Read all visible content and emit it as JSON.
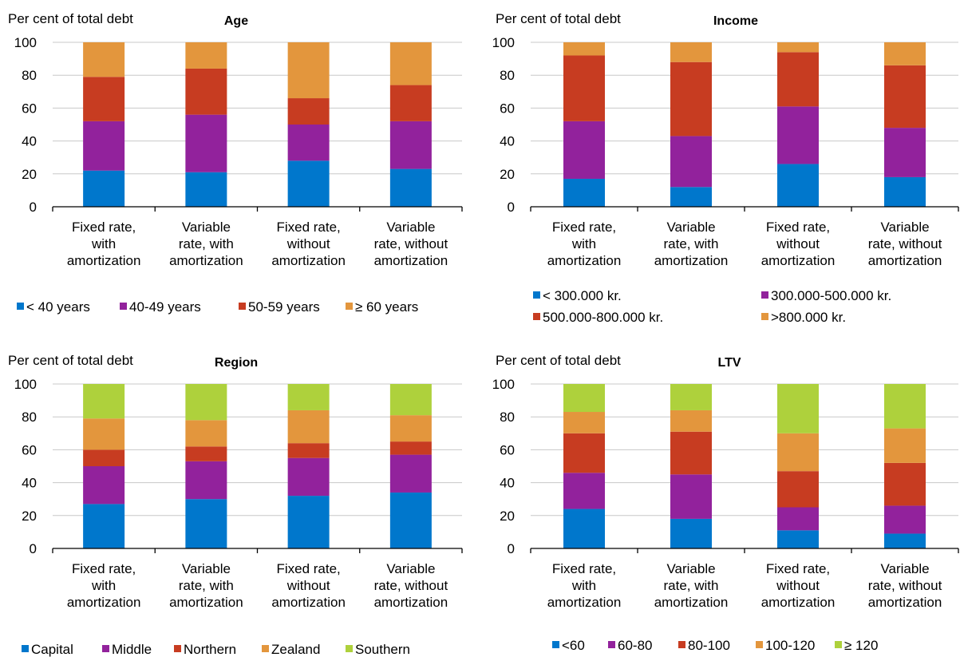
{
  "colors": {
    "blue": "#0077cc",
    "purple": "#92229c",
    "red": "#c73c21",
    "orange": "#e3963d",
    "green": "#aed13c",
    "grid": "#c8c8c8",
    "axis": "#000000"
  },
  "chart_data": [
    {
      "type": "bar",
      "stacked": true,
      "title": "Age",
      "ylabel": "Per cent of total debt",
      "ylim": [
        0,
        100
      ],
      "yticks": [
        0,
        20,
        40,
        60,
        80,
        100
      ],
      "grid": true,
      "legend_position": "bottom",
      "categories": [
        [
          "Fixed rate,",
          "with",
          "amortization"
        ],
        [
          "Variable",
          "rate, with",
          "amortization"
        ],
        [
          "Fixed rate,",
          "without",
          "amortization"
        ],
        [
          "Variable",
          "rate, without",
          "amortization"
        ]
      ],
      "series": [
        {
          "name": "< 40 years",
          "color": "#0077cc",
          "values": [
            22,
            21,
            28,
            23
          ]
        },
        {
          "name": "40-49 years",
          "color": "#92229c",
          "values": [
            30,
            35,
            22,
            29
          ]
        },
        {
          "name": "50-59 years",
          "color": "#c73c21",
          "values": [
            27,
            28,
            16,
            22
          ]
        },
        {
          "name": "≥ 60 years",
          "color": "#e3963d",
          "values": [
            21,
            16,
            34,
            26
          ]
        }
      ]
    },
    {
      "type": "bar",
      "stacked": true,
      "title": "Income",
      "ylabel": "Per cent of total debt",
      "ylim": [
        0,
        100
      ],
      "yticks": [
        0,
        20,
        40,
        60,
        80,
        100
      ],
      "grid": true,
      "legend_position": "bottom",
      "categories": [
        [
          "Fixed rate,",
          "with",
          "amortization"
        ],
        [
          "Variable",
          "rate, with",
          "amortization"
        ],
        [
          "Fixed rate,",
          "without",
          "amortization"
        ],
        [
          "Variable",
          "rate, without",
          "amortization"
        ]
      ],
      "series": [
        {
          "name": "< 300.000 kr.",
          "color": "#0077cc",
          "values": [
            17,
            12,
            26,
            18
          ]
        },
        {
          "name": "300.000-500.000 kr.",
          "color": "#92229c",
          "values": [
            35,
            31,
            35,
            30
          ]
        },
        {
          "name": "500.000-800.000 kr.",
          "color": "#c73c21",
          "values": [
            40,
            45,
            33,
            38
          ]
        },
        {
          "name": ">800.000 kr.",
          "color": "#e3963d",
          "values": [
            8,
            12,
            6,
            14
          ]
        }
      ]
    },
    {
      "type": "bar",
      "stacked": true,
      "title": "Region",
      "ylabel": "Per cent of total debt",
      "ylim": [
        0,
        100
      ],
      "yticks": [
        0,
        20,
        40,
        60,
        80,
        100
      ],
      "grid": true,
      "legend_position": "bottom",
      "categories": [
        [
          "Fixed rate,",
          "with",
          "amortization"
        ],
        [
          "Variable",
          "rate, with",
          "amortization"
        ],
        [
          "Fixed rate,",
          "without",
          "amortization"
        ],
        [
          "Variable",
          "rate, without",
          "amortization"
        ]
      ],
      "series": [
        {
          "name": "Capital",
          "color": "#0077cc",
          "values": [
            27,
            30,
            32,
            34
          ]
        },
        {
          "name": "Middle",
          "color": "#92229c",
          "values": [
            23,
            23,
            23,
            23
          ]
        },
        {
          "name": "Northern",
          "color": "#c73c21",
          "values": [
            10,
            9,
            9,
            8
          ]
        },
        {
          "name": "Zealand",
          "color": "#e3963d",
          "values": [
            19,
            16,
            20,
            16
          ]
        },
        {
          "name": "Southern",
          "color": "#aed13c",
          "values": [
            21,
            22,
            16,
            19
          ]
        }
      ]
    },
    {
      "type": "bar",
      "stacked": true,
      "title": "LTV",
      "ylabel": "Per cent of total debt",
      "ylim": [
        0,
        100
      ],
      "yticks": [
        0,
        20,
        40,
        60,
        80,
        100
      ],
      "grid": true,
      "legend_position": "bottom",
      "categories": [
        [
          "Fixed rate,",
          "with",
          "amortization"
        ],
        [
          "Variable",
          "rate, with",
          "amortization"
        ],
        [
          "Fixed rate,",
          "without",
          "amortization"
        ],
        [
          "Variable",
          "rate, without",
          "amortization"
        ]
      ],
      "series": [
        {
          "name": "<60",
          "color": "#0077cc",
          "values": [
            24,
            18,
            11,
            9
          ]
        },
        {
          "name": "60-80",
          "color": "#92229c",
          "values": [
            22,
            27,
            14,
            17
          ]
        },
        {
          "name": "80-100",
          "color": "#c73c21",
          "values": [
            24,
            26,
            22,
            26
          ]
        },
        {
          "name": "100-120",
          "color": "#e3963d",
          "values": [
            13,
            13,
            23,
            21
          ]
        },
        {
          "name": "≥ 120",
          "color": "#aed13c",
          "values": [
            17,
            16,
            30,
            27
          ]
        }
      ]
    }
  ]
}
